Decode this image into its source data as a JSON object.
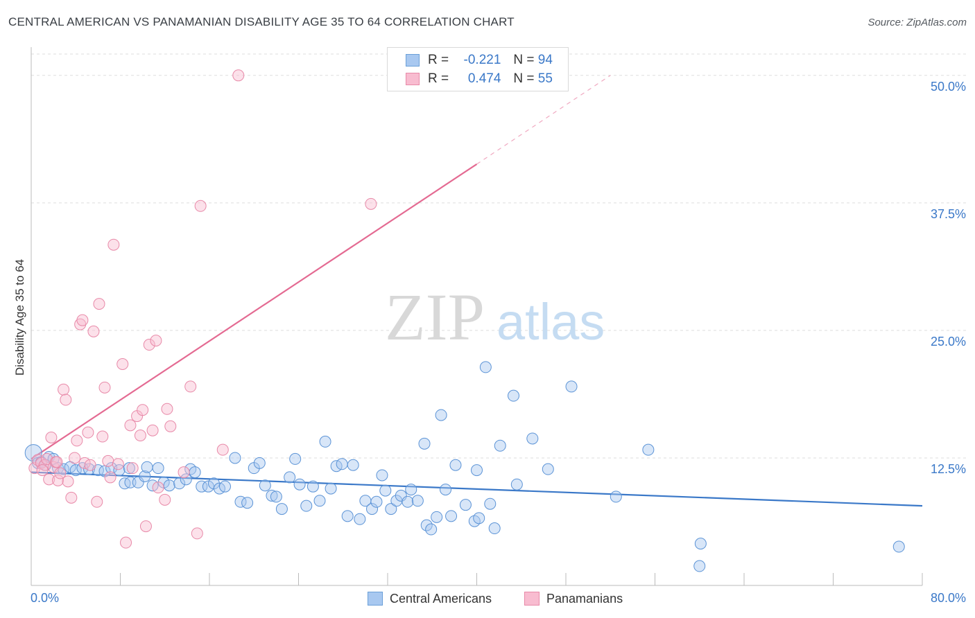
{
  "title": "CENTRAL AMERICAN VS PANAMANIAN DISABILITY AGE 35 TO 64 CORRELATION CHART",
  "source": "Source: ZipAtlas.com",
  "watermark": {
    "zip": "ZIP",
    "atlas": "atlas"
  },
  "legend": {
    "rows": [
      {
        "r_label": "R =",
        "r_value": "-0.221",
        "n_label": "N =",
        "n_value": "94",
        "color": "#a8c8f0",
        "border": "#6a9fd8"
      },
      {
        "r_label": "R =",
        "r_value": "0.474",
        "n_label": "N =",
        "n_value": "55",
        "color": "#f8bcd0",
        "border": "#e889a8"
      }
    ]
  },
  "bottom_legend": {
    "series1": "Central Americans",
    "series2": "Panamanians"
  },
  "colors": {
    "blue": "#3a78c8",
    "blue_fill": "#a8c8f0",
    "pink": "#e46a92",
    "pink_fill": "#f8bcd0",
    "axis_text": "#3a78c8",
    "grid": "#dddddd"
  },
  "chart_data": {
    "type": "scatter",
    "title": "CENTRAL AMERICAN VS PANAMANIAN DISABILITY AGE 35 TO 64 CORRELATION CHART",
    "xlabel": "",
    "ylabel": "Disability Age 35 to 64",
    "xlim": [
      0,
      80
    ],
    "ylim": [
      0,
      52.5
    ],
    "x_tick_labels": [
      "0.0%",
      "80.0%"
    ],
    "y_ticks": [
      12.5,
      25.0,
      37.5,
      50.0
    ],
    "y_tick_labels": [
      "12.5%",
      "25.0%",
      "37.5%",
      "50.0%"
    ],
    "grid": true,
    "legend_position": "top-center",
    "series": [
      {
        "name": "Central Americans",
        "color": "#3a78c8",
        "trend": {
          "x0": 0,
          "y0": 11.1,
          "x1": 80,
          "y1": 7.8
        },
        "points": [
          [
            0.2,
            13.0
          ],
          [
            0.6,
            12.0
          ],
          [
            0.9,
            12.1
          ],
          [
            1.3,
            11.8
          ],
          [
            1.6,
            12.6
          ],
          [
            2.0,
            12.4
          ],
          [
            2.4,
            11.5
          ],
          [
            2.9,
            11.4
          ],
          [
            3.5,
            11.6
          ],
          [
            4.0,
            11.3
          ],
          [
            4.6,
            11.5
          ],
          [
            5.2,
            11.4
          ],
          [
            6.0,
            11.3
          ],
          [
            6.6,
            11.2
          ],
          [
            7.2,
            11.5
          ],
          [
            7.9,
            11.3
          ],
          [
            8.4,
            10.0
          ],
          [
            8.9,
            10.1
          ],
          [
            8.8,
            11.5
          ],
          [
            9.6,
            10.1
          ],
          [
            10.2,
            10.7
          ],
          [
            10.4,
            11.6
          ],
          [
            10.9,
            9.8
          ],
          [
            11.4,
            11.5
          ],
          [
            11.9,
            10.1
          ],
          [
            12.4,
            9.8
          ],
          [
            13.3,
            10.0
          ],
          [
            13.9,
            10.4
          ],
          [
            14.3,
            11.4
          ],
          [
            14.7,
            11.1
          ],
          [
            15.3,
            9.7
          ],
          [
            15.9,
            9.7
          ],
          [
            16.4,
            10.0
          ],
          [
            16.9,
            9.5
          ],
          [
            17.4,
            9.7
          ],
          [
            18.3,
            12.5
          ],
          [
            18.8,
            8.2
          ],
          [
            19.4,
            8.1
          ],
          [
            20.0,
            11.5
          ],
          [
            20.5,
            12.0
          ],
          [
            21.0,
            9.8
          ],
          [
            21.6,
            8.8
          ],
          [
            22.0,
            8.7
          ],
          [
            22.5,
            7.5
          ],
          [
            23.2,
            10.6
          ],
          [
            23.7,
            12.4
          ],
          [
            24.1,
            9.9
          ],
          [
            24.7,
            7.8
          ],
          [
            25.3,
            9.7
          ],
          [
            25.9,
            8.3
          ],
          [
            26.4,
            14.1
          ],
          [
            26.9,
            9.5
          ],
          [
            27.4,
            11.7
          ],
          [
            27.9,
            11.9
          ],
          [
            28.4,
            6.8
          ],
          [
            28.9,
            11.8
          ],
          [
            29.5,
            6.5
          ],
          [
            30.0,
            8.3
          ],
          [
            30.6,
            7.5
          ],
          [
            31.0,
            8.2
          ],
          [
            31.5,
            10.8
          ],
          [
            31.8,
            9.3
          ],
          [
            32.3,
            7.5
          ],
          [
            32.8,
            8.3
          ],
          [
            33.2,
            8.8
          ],
          [
            33.8,
            8.2
          ],
          [
            34.1,
            9.4
          ],
          [
            34.7,
            8.3
          ],
          [
            35.3,
            13.9
          ],
          [
            35.5,
            5.9
          ],
          [
            35.9,
            5.5
          ],
          [
            36.4,
            6.7
          ],
          [
            36.8,
            16.7
          ],
          [
            37.2,
            9.4
          ],
          [
            37.7,
            6.8
          ],
          [
            38.1,
            11.8
          ],
          [
            39.0,
            7.9
          ],
          [
            39.8,
            6.3
          ],
          [
            40.0,
            11.3
          ],
          [
            40.2,
            6.6
          ],
          [
            40.8,
            21.4
          ],
          [
            41.2,
            8.0
          ],
          [
            41.6,
            5.6
          ],
          [
            42.1,
            13.7
          ],
          [
            43.3,
            18.6
          ],
          [
            43.6,
            9.9
          ],
          [
            45.0,
            14.4
          ],
          [
            46.4,
            11.4
          ],
          [
            48.5,
            19.5
          ],
          [
            52.5,
            8.7
          ],
          [
            55.4,
            13.3
          ],
          [
            60.1,
            4.1
          ],
          [
            60.0,
            1.9
          ],
          [
            77.9,
            3.8
          ]
        ]
      },
      {
        "name": "Panamanians",
        "color": "#e46a92",
        "trend": {
          "x0": 0,
          "y0": 12.4,
          "x1": 40,
          "y1": 41.3,
          "dash_x1": 52,
          "dash_y1": 50.0
        },
        "points": [
          [
            0.3,
            11.5
          ],
          [
            0.6,
            12.3
          ],
          [
            0.9,
            12.0
          ],
          [
            1.2,
            11.8
          ],
          [
            1.4,
            12.4
          ],
          [
            1.6,
            10.4
          ],
          [
            1.8,
            14.5
          ],
          [
            2.0,
            11.6
          ],
          [
            2.2,
            12.1
          ],
          [
            2.4,
            10.3
          ],
          [
            2.6,
            11.0
          ],
          [
            2.9,
            19.2
          ],
          [
            3.1,
            18.2
          ],
          [
            3.3,
            10.2
          ],
          [
            3.6,
            8.6
          ],
          [
            3.9,
            12.5
          ],
          [
            4.1,
            14.2
          ],
          [
            4.4,
            25.6
          ],
          [
            4.6,
            26.0
          ],
          [
            4.8,
            12.0
          ],
          [
            5.1,
            15.0
          ],
          [
            5.3,
            11.8
          ],
          [
            5.6,
            24.9
          ],
          [
            5.9,
            8.2
          ],
          [
            6.1,
            27.6
          ],
          [
            6.4,
            14.6
          ],
          [
            6.6,
            19.4
          ],
          [
            6.9,
            12.2
          ],
          [
            7.1,
            10.6
          ],
          [
            7.4,
            33.4
          ],
          [
            7.8,
            11.9
          ],
          [
            8.2,
            21.7
          ],
          [
            8.5,
            4.2
          ],
          [
            8.9,
            15.7
          ],
          [
            9.1,
            11.5
          ],
          [
            9.5,
            16.6
          ],
          [
            9.8,
            14.7
          ],
          [
            10.0,
            17.2
          ],
          [
            10.3,
            5.8
          ],
          [
            10.6,
            23.6
          ],
          [
            10.9,
            15.2
          ],
          [
            11.2,
            24.0
          ],
          [
            11.4,
            9.6
          ],
          [
            12.0,
            8.4
          ],
          [
            12.2,
            17.3
          ],
          [
            12.5,
            15.6
          ],
          [
            13.7,
            11.1
          ],
          [
            14.3,
            19.5
          ],
          [
            14.9,
            5.1
          ],
          [
            15.2,
            37.2
          ],
          [
            17.2,
            13.3
          ],
          [
            18.6,
            50.0
          ],
          [
            30.5,
            37.4
          ],
          [
            2.3,
            12.1
          ],
          [
            1.0,
            11.3
          ]
        ]
      }
    ]
  }
}
